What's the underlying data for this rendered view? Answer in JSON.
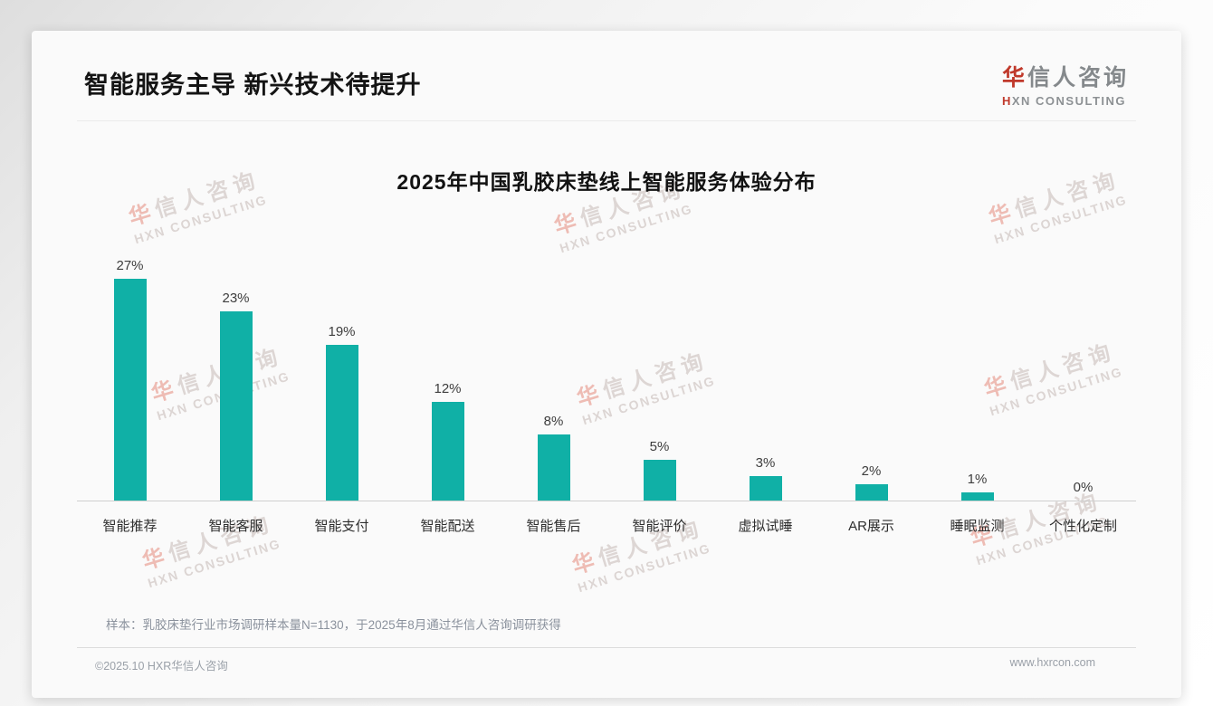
{
  "header": {
    "title": "智能服务主导 新兴技术待提升"
  },
  "logo": {
    "cn_first": "华",
    "cn_rest": "信人咨询",
    "en_first": "H",
    "en_rest": "XN CONSULTING"
  },
  "watermark": {
    "cn_first": "华",
    "cn_rest": "信人咨询",
    "en": "HXN CONSULTING"
  },
  "chart_data": {
    "type": "bar",
    "title": "2025年中国乳胶床垫线上智能服务体验分布",
    "categories": [
      "智能推荐",
      "智能客服",
      "智能支付",
      "智能配送",
      "智能售后",
      "智能评价",
      "虚拟试睡",
      "AR展示",
      "睡眠监测",
      "个性化定制"
    ],
    "values": [
      27,
      23,
      19,
      12,
      8,
      5,
      3,
      2,
      1,
      0
    ],
    "value_labels": [
      "27%",
      "23%",
      "19%",
      "12%",
      "8%",
      "5%",
      "3%",
      "2%",
      "1%",
      "0%"
    ],
    "unit": "%",
    "ylim": [
      0,
      30
    ],
    "grid": false,
    "legend": false,
    "bar_color": "#10B0A6"
  },
  "footer": {
    "note": "样本：乳胶床垫行业市场调研样本量N=1130，于2025年8月通过华信人咨询调研获得",
    "copyright": "©2025.10 HXR华信人咨询",
    "website": "www.hxrcon.com"
  },
  "colors": {
    "bar": "#10B0A6",
    "logo_red": "#C0392B"
  }
}
